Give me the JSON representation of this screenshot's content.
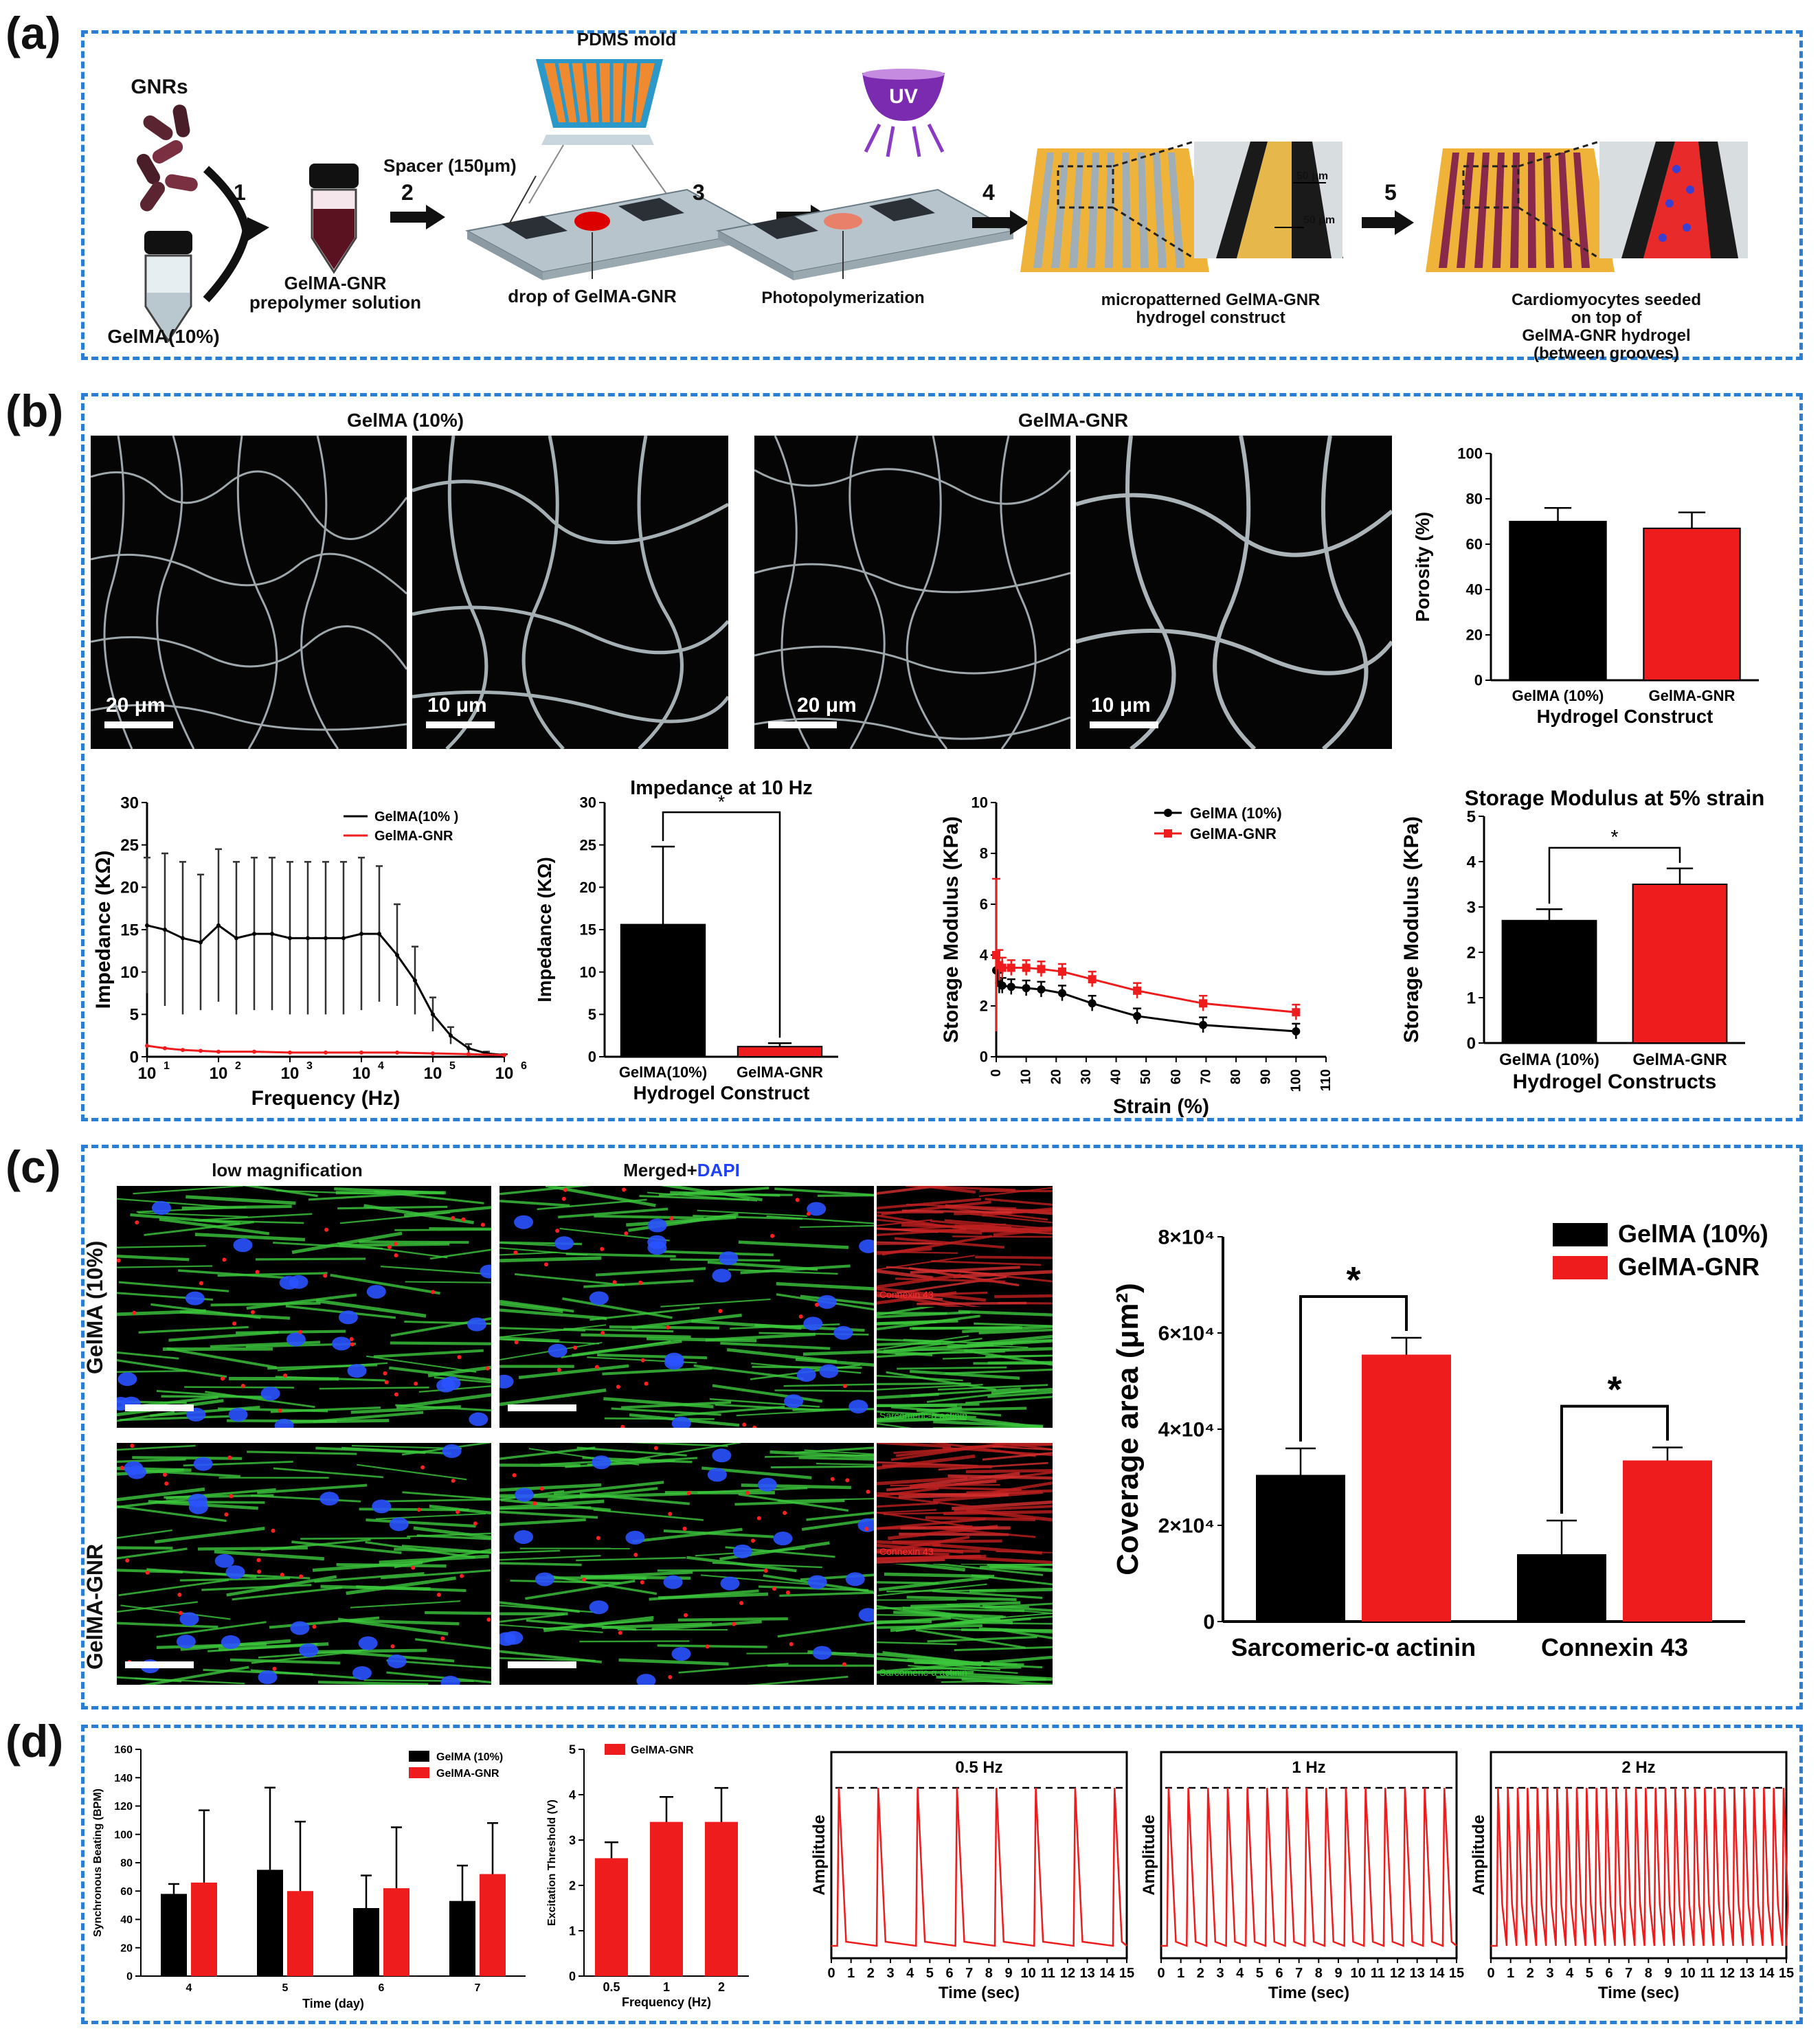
{
  "labels": {
    "a": "(a)",
    "b": "(b)",
    "c": "(c)",
    "d": "(d)"
  },
  "a": {
    "gnrs": "GNRs",
    "gelma": "GelMA(10%)",
    "step1": "1",
    "step2": "2",
    "step3": "3",
    "step4": "4",
    "step5": "5",
    "prepolymer": "GelMA-GNR\nprepolymer solution",
    "pdms": "PDMS mold",
    "spacer": "Spacer (150μm)",
    "drop": "drop of GelMA-GNR",
    "uv": "UV",
    "photo": "Photopolymerization",
    "micropattern": "micropatterned GelMA-GNR\nhydrogel construct",
    "dim1": "50 μm",
    "dim2": "50 μm",
    "seeded": "Cardiomyocytes seeded on top of\nGelMA-GNR hydrogel (between grooves)"
  },
  "b": {
    "title_gelma": "GelMA (10%)",
    "title_gnr": "GelMA-GNR",
    "sb1": "20 μm",
    "sb2": "10 μm",
    "sb3": "20 μm",
    "sb4": "10 μm",
    "colors": {
      "black": "#000000",
      "red": "#ee1c1c"
    }
  },
  "c": {
    "low_mag": "low magnification",
    "merged": "Merged+",
    "dapi": "DAPI",
    "row1": "GelMA (10%)",
    "row2": "GelMA-GNR",
    "cx43": "Connexin 43",
    "actinin": "Sarcomeric-α actinin"
  },
  "chart_data": [
    {
      "id": "porosity",
      "type": "bar",
      "categories": [
        "GelMA (10%)",
        "GelMA-GNR"
      ],
      "values": [
        70,
        67
      ],
      "errors": [
        6,
        7
      ],
      "colors": [
        "#000000",
        "#ee1c1c"
      ],
      "xlabel": "Hydrogel Construct",
      "ylabel": "Porosity (%)",
      "ylim": [
        0,
        100
      ],
      "yticks": [
        "0",
        "20",
        "40",
        "60",
        "80",
        "100"
      ]
    },
    {
      "id": "impedance_freq",
      "type": "line",
      "xscale": "log",
      "xlim": [
        1,
        6
      ],
      "xticks": [
        "10",
        "10",
        "10",
        "10",
        "10",
        "10"
      ],
      "xtick_exp": [
        "1",
        "2",
        "3",
        "4",
        "5",
        "6"
      ],
      "ylim": [
        0,
        30
      ],
      "yticks": [
        "0",
        "5",
        "10",
        "15",
        "20",
        "25",
        "30"
      ],
      "xlabel": "Frequency (Hz)",
      "ylabel": "Impedance (KΩ)",
      "series": [
        {
          "name": "GelMA(10% )",
          "color": "#000000",
          "x": [
            1.0,
            1.25,
            1.5,
            1.75,
            2.0,
            2.25,
            2.5,
            2.75,
            3.0,
            3.25,
            3.5,
            3.75,
            4.0,
            4.25,
            4.5,
            4.75,
            5.0,
            5.25,
            5.5,
            5.75,
            6.0
          ],
          "y": [
            15.5,
            15.0,
            14.0,
            13.5,
            15.5,
            14.0,
            14.5,
            14.5,
            14.0,
            14.0,
            14.0,
            14.0,
            14.5,
            14.5,
            12.0,
            9.0,
            5.0,
            2.5,
            1.0,
            0.4,
            0.2
          ],
          "err": [
            8,
            9,
            9,
            8,
            9,
            9,
            9,
            9,
            9,
            9,
            9,
            9,
            9,
            8,
            6,
            4,
            2,
            1,
            0.5,
            0.2,
            0.1
          ]
        },
        {
          "name": "GelMA-GNR",
          "color": "#ee1c1c",
          "x": [
            1.0,
            1.25,
            1.5,
            1.75,
            2.0,
            2.5,
            3.0,
            3.5,
            4.0,
            4.5,
            5.0,
            5.5,
            6.0
          ],
          "y": [
            1.3,
            1.0,
            0.8,
            0.7,
            0.6,
            0.6,
            0.5,
            0.5,
            0.5,
            0.5,
            0.4,
            0.3,
            0.2
          ]
        }
      ]
    },
    {
      "id": "impedance_10hz",
      "type": "bar",
      "title": "Impedance at 10 Hz",
      "categories": [
        "GelMA(10%)",
        "GelMA-GNR"
      ],
      "values": [
        15.6,
        1.2
      ],
      "errors": [
        9.2,
        0.4
      ],
      "colors": [
        "#000000",
        "#ee1c1c"
      ],
      "xlabel": "Hydrogel Construct",
      "ylabel": "Impedance (KΩ)",
      "ylim": [
        0,
        30
      ],
      "yticks": [
        "0",
        "5",
        "10",
        "15",
        "20",
        "25",
        "30"
      ],
      "significance": "*"
    },
    {
      "id": "storage_strain",
      "type": "line",
      "xlim": [
        0,
        110
      ],
      "xticks": [
        "0",
        "10",
        "20",
        "30",
        "40",
        "50",
        "60",
        "70",
        "80",
        "90",
        "100",
        "110"
      ],
      "ylim": [
        0,
        10
      ],
      "yticks": [
        "0",
        "2",
        "4",
        "6",
        "8",
        "10"
      ],
      "xlabel": "Strain (%)",
      "ylabel": "Storage Modulus (KPa)",
      "series": [
        {
          "name": "GelMA (10%)",
          "color": "#000000",
          "x": [
            0,
            1,
            2,
            5,
            10,
            15,
            22,
            32,
            47,
            69,
            100
          ],
          "y": [
            3.4,
            2.9,
            2.8,
            2.75,
            2.7,
            2.65,
            2.5,
            2.1,
            1.6,
            1.25,
            1.0
          ],
          "err": [
            0.6,
            0.4,
            0.3,
            0.3,
            0.3,
            0.3,
            0.3,
            0.3,
            0.3,
            0.3,
            0.3
          ]
        },
        {
          "name": "GelMA-GNR",
          "color": "#ee1c1c",
          "x": [
            0,
            1,
            2,
            5,
            10,
            15,
            22,
            32,
            47,
            69,
            100
          ],
          "y": [
            4.0,
            3.6,
            3.5,
            3.5,
            3.5,
            3.45,
            3.35,
            3.05,
            2.6,
            2.1,
            1.75
          ],
          "err": [
            3.0,
            0.6,
            0.4,
            0.3,
            0.3,
            0.3,
            0.3,
            0.3,
            0.3,
            0.3,
            0.3
          ]
        }
      ]
    },
    {
      "id": "storage_5pct",
      "type": "bar",
      "title": "Storage Modulus at 5% strain",
      "categories": [
        "GelMA (10%)",
        "GelMA-GNR"
      ],
      "values": [
        2.7,
        3.5
      ],
      "errors": [
        0.25,
        0.35
      ],
      "colors": [
        "#000000",
        "#ee1c1c"
      ],
      "xlabel": "Hydrogel Constructs",
      "ylabel": "Storage Modulus (KPa)",
      "ylim": [
        0,
        5
      ],
      "yticks": [
        "0",
        "1",
        "2",
        "3",
        "4",
        "5"
      ],
      "significance": "*"
    },
    {
      "id": "coverage",
      "type": "bar",
      "categories": [
        "Sarcomeric-α actinin",
        "Connexin 43"
      ],
      "series": [
        {
          "name": "GelMA (10%)",
          "color": "#000000",
          "values": [
            30500,
            14000
          ],
          "errors": [
            5500,
            7000
          ]
        },
        {
          "name": "GelMA-GNR",
          "color": "#ee1c1c",
          "values": [
            55500,
            33500
          ],
          "errors": [
            3500,
            2700
          ]
        }
      ],
      "ylabel": "Coverage area (μm²)",
      "ylim": [
        0,
        80000
      ],
      "yticks": [
        "0",
        "2×10⁴",
        "4×10⁴",
        "6×10⁴",
        "8×10⁴"
      ],
      "significance": [
        "*",
        "*"
      ],
      "legend": "top-right"
    },
    {
      "id": "beating",
      "type": "bar",
      "categories": [
        "4",
        "5",
        "6",
        "7"
      ],
      "series": [
        {
          "name": "GelMA (10%)",
          "color": "#000000",
          "values": [
            58,
            75,
            48,
            53
          ],
          "errors": [
            7,
            58,
            23,
            25
          ]
        },
        {
          "name": "GelMA-GNR",
          "color": "#ee1c1c",
          "values": [
            66,
            60,
            62,
            72
          ],
          "errors": [
            51,
            49,
            43,
            36
          ]
        }
      ],
      "xlabel": "Time (day)",
      "ylabel": "Synchronous Beating (BPM)",
      "ylim": [
        0,
        160
      ],
      "yticks": [
        "0",
        "20",
        "40",
        "60",
        "80",
        "100",
        "120",
        "140",
        "160"
      ]
    },
    {
      "id": "threshold",
      "type": "bar",
      "categories": [
        "0.5",
        "1",
        "2"
      ],
      "series": [
        {
          "name": "GelMA-GNR",
          "color": "#ee1c1c",
          "values": [
            2.6,
            3.4,
            3.4
          ],
          "errors": [
            0.35,
            0.55,
            0.75
          ]
        }
      ],
      "xlabel": "Frequency (Hz)",
      "ylabel": "Excitation Threshold (V)",
      "ylim": [
        0,
        5
      ],
      "yticks": [
        "0",
        "1",
        "2",
        "3",
        "4",
        "5"
      ]
    },
    {
      "id": "trace05",
      "type": "line",
      "title": "0.5 Hz",
      "frequency_hz": 0.5,
      "xlim": [
        0,
        15
      ],
      "xticks": [
        "0",
        "1",
        "2",
        "3",
        "4",
        "5",
        "6",
        "7",
        "8",
        "9",
        "10",
        "11",
        "12",
        "13",
        "14",
        "15"
      ],
      "xlabel": "Time (sec)",
      "ylabel": "Amplitude"
    },
    {
      "id": "trace1",
      "type": "line",
      "title": "1 Hz",
      "frequency_hz": 1,
      "xlim": [
        0,
        15
      ],
      "xticks": [
        "0",
        "1",
        "2",
        "3",
        "4",
        "5",
        "6",
        "7",
        "8",
        "9",
        "10",
        "11",
        "12",
        "13",
        "14",
        "15"
      ],
      "xlabel": "Time (sec)",
      "ylabel": "Amplitude"
    },
    {
      "id": "trace2",
      "type": "line",
      "title": "2 Hz",
      "frequency_hz": 2,
      "xlim": [
        0,
        15
      ],
      "xticks": [
        "0",
        "1",
        "2",
        "3",
        "4",
        "5",
        "6",
        "7",
        "8",
        "9",
        "10",
        "11",
        "12",
        "13",
        "14",
        "15"
      ],
      "xlabel": "Time (sec)",
      "ylabel": "Amplitude"
    }
  ]
}
